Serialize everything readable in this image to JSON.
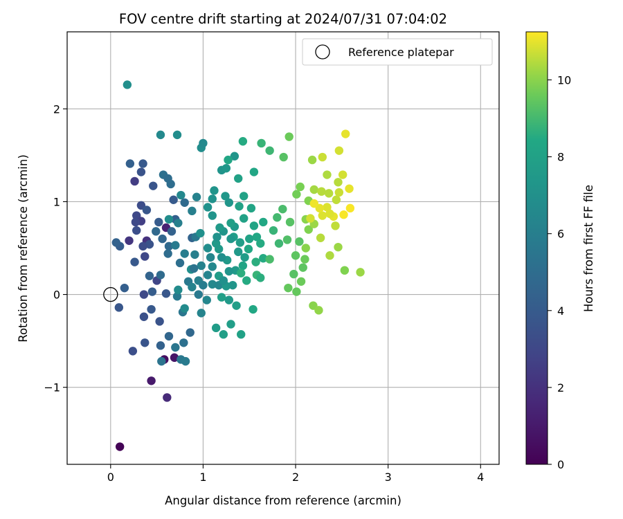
{
  "chart_data": {
    "type": "scatter",
    "title": "FOV centre drift starting at 2024/07/31 07:04:02",
    "xlabel": "Angular distance from reference (arcmin)",
    "ylabel": "Rotation from reference (arcmin)",
    "xlim": [
      -0.47,
      4.2
    ],
    "ylim": [
      -1.83,
      2.83
    ],
    "xticks": [
      0,
      1,
      2,
      3,
      4
    ],
    "xtick_labels": [
      "0",
      "1",
      "2",
      "3",
      "4"
    ],
    "yticks": [
      -1,
      0,
      1,
      2
    ],
    "ytick_labels": [
      "−1",
      "0",
      "1",
      "2"
    ],
    "grid": true,
    "legend": {
      "position": "top-right",
      "entries": [
        {
          "label": "Reference platepar",
          "marker": "open-circle"
        }
      ]
    },
    "reference_point": {
      "x": 0,
      "y": 0
    },
    "colorbar": {
      "label": "Hours from first FF file",
      "min": 0,
      "max": 11.25,
      "ticks": [
        0,
        2,
        4,
        6,
        8,
        10
      ],
      "tick_labels": [
        "0",
        "2",
        "4",
        "6",
        "8",
        "10"
      ],
      "colormap": "viridis"
    },
    "columns": [
      "x_arcmin",
      "y_arcmin",
      "hours"
    ],
    "points": [
      [
        0.1,
        -1.64,
        0.1
      ],
      [
        0.44,
        -0.93,
        1.0
      ],
      [
        0.61,
        -1.11,
        1.7
      ],
      [
        0.58,
        -0.7,
        0.5
      ],
      [
        0.69,
        -0.68,
        0.8
      ],
      [
        0.6,
        0.72,
        1.3
      ],
      [
        0.39,
        0.58,
        2.0
      ],
      [
        0.26,
        1.22,
        2.5
      ],
      [
        0.2,
        0.58,
        2.2
      ],
      [
        0.28,
        0.85,
        3.0
      ],
      [
        0.33,
        0.79,
        2.6
      ],
      [
        0.27,
        0.78,
        3.1
      ],
      [
        0.5,
        0.15,
        2.9
      ],
      [
        0.37,
        0.41,
        3.0
      ],
      [
        0.33,
        0.96,
        3.3
      ],
      [
        0.36,
        0.0,
        3.1
      ],
      [
        0.24,
        -0.61,
        3.4
      ],
      [
        0.53,
        -0.29,
        3.6
      ],
      [
        0.37,
        -0.52,
        3.7
      ],
      [
        0.36,
        -0.24,
        3.5
      ],
      [
        0.33,
        1.32,
        3.6
      ],
      [
        0.35,
        1.41,
        3.9
      ],
      [
        0.46,
        1.17,
        3.7
      ],
      [
        0.39,
        0.91,
        3.8
      ],
      [
        0.52,
        0.78,
        4.0
      ],
      [
        0.42,
        0.54,
        3.6
      ],
      [
        0.35,
        0.52,
        3.3
      ],
      [
        0.28,
        0.69,
        3.4
      ],
      [
        0.26,
        0.35,
        3.9
      ],
      [
        0.45,
        0.03,
        4.1
      ],
      [
        0.6,
        0.01,
        3.8
      ],
      [
        0.44,
        -0.16,
        3.9
      ],
      [
        0.09,
        -0.14,
        3.8
      ],
      [
        0.1,
        0.52,
        4.1
      ],
      [
        0.06,
        0.56,
        4.4
      ],
      [
        0.15,
        0.07,
        4.2
      ],
      [
        0.21,
        1.41,
        4.3
      ],
      [
        0.54,
        -0.55,
        4.4
      ],
      [
        0.63,
        -0.45,
        4.6
      ],
      [
        0.68,
        1.02,
        4.0
      ],
      [
        0.7,
        0.81,
        4.3
      ],
      [
        0.88,
        0.61,
        4.5
      ],
      [
        0.66,
        0.68,
        4.4
      ],
      [
        0.42,
        0.2,
        4.5
      ],
      [
        0.56,
        0.6,
        4.6
      ],
      [
        0.49,
        0.68,
        4.7
      ],
      [
        0.63,
        0.52,
        4.8
      ],
      [
        0.62,
        0.44,
        5.0
      ],
      [
        0.54,
        0.21,
        4.9
      ],
      [
        0.8,
        0.99,
        4.9
      ],
      [
        0.57,
        1.29,
        5.2
      ],
      [
        0.62,
        1.25,
        5.0
      ],
      [
        0.65,
        1.19,
        5.0
      ],
      [
        0.75,
        0.34,
        5.1
      ],
      [
        0.86,
        -0.41,
        4.7
      ],
      [
        0.79,
        -0.52,
        5.2
      ],
      [
        0.55,
        -0.72,
        5.4
      ],
      [
        0.7,
        -0.57,
        5.5
      ],
      [
        0.76,
        -0.7,
        5.6
      ],
      [
        0.81,
        -0.72,
        5.8
      ],
      [
        0.78,
        -0.19,
        5.5
      ],
      [
        0.72,
        -0.02,
        5.7
      ],
      [
        0.84,
        0.14,
        5.7
      ],
      [
        0.8,
        0.44,
        5.9
      ],
      [
        0.92,
        0.62,
        5.6
      ],
      [
        0.91,
        0.43,
        6.0
      ],
      [
        0.98,
        0.31,
        6.2
      ],
      [
        0.7,
        0.53,
        5.8
      ],
      [
        0.73,
        0.77,
        6.0
      ],
      [
        0.88,
        0.9,
        6.0
      ],
      [
        0.93,
        1.05,
        6.2
      ],
      [
        0.76,
        1.07,
        6.5
      ],
      [
        0.88,
        0.08,
        6.2
      ],
      [
        0.95,
        0.15,
        6.1
      ],
      [
        1.05,
        0.21,
        6.3
      ],
      [
        0.98,
        -0.2,
        6.3
      ],
      [
        1.04,
        -0.06,
        6.4
      ],
      [
        1.1,
        0.11,
        6.5
      ],
      [
        1.17,
        0.1,
        6.4
      ],
      [
        0.98,
        1.58,
        6.8
      ],
      [
        1.0,
        1.63,
        6.6
      ],
      [
        0.54,
        1.72,
        6.6
      ],
      [
        0.72,
        1.72,
        6.8
      ],
      [
        0.18,
        2.26,
        6.9
      ],
      [
        0.63,
        0.81,
        6.8
      ],
      [
        0.73,
        0.05,
        6.7
      ],
      [
        0.8,
        -0.15,
        6.7
      ],
      [
        0.87,
        0.27,
        6.9
      ],
      [
        0.97,
        0.66,
        7.0
      ],
      [
        1.05,
        0.94,
        7.1
      ],
      [
        1.1,
        1.03,
        7.1
      ],
      [
        1.12,
        1.12,
        7.2
      ],
      [
        1.2,
        1.34,
        7.2
      ],
      [
        1.25,
        1.36,
        7.4
      ],
      [
        1.34,
        1.49,
        7.3
      ],
      [
        1.24,
        1.06,
        7.4
      ],
      [
        1.28,
        0.99,
        7.3
      ],
      [
        1.34,
        0.73,
        7.5
      ],
      [
        1.22,
        0.68,
        7.3
      ],
      [
        1.17,
        0.49,
        7.6
      ],
      [
        1.14,
        0.55,
        7.5
      ],
      [
        1.26,
        0.37,
        7.5
      ],
      [
        1.17,
        0.2,
        7.7
      ],
      [
        1.25,
        0.09,
        7.4
      ],
      [
        1.14,
        -0.36,
        7.7
      ],
      [
        1.22,
        -0.43,
        7.9
      ],
      [
        1.3,
        -0.32,
        7.8
      ],
      [
        1.41,
        -0.43,
        8.0
      ],
      [
        1.36,
        -0.12,
        7.8
      ],
      [
        1.28,
        -0.06,
        7.5
      ],
      [
        1.2,
        -0.03,
        7.9
      ],
      [
        1.35,
        0.26,
        7.6
      ],
      [
        1.4,
        0.56,
        7.8
      ],
      [
        1.33,
        0.62,
        7.8
      ],
      [
        1.3,
        0.77,
        7.9
      ],
      [
        1.39,
        0.95,
        8.0
      ],
      [
        1.44,
        1.06,
        8.1
      ],
      [
        1.38,
        1.25,
        8.0
      ],
      [
        1.27,
        1.45,
        8.3
      ],
      [
        1.43,
        1.65,
        8.5
      ],
      [
        1.55,
        1.32,
        8.3
      ],
      [
        1.43,
        0.31,
        8.2
      ],
      [
        1.49,
        0.49,
        8.4
      ],
      [
        1.55,
        0.74,
        8.2
      ],
      [
        1.65,
        0.78,
        8.4
      ],
      [
        1.62,
        0.55,
        8.5
      ],
      [
        1.65,
        0.39,
        8.5
      ],
      [
        1.57,
        0.35,
        8.6
      ],
      [
        1.41,
        0.23,
        8.6
      ],
      [
        1.54,
        -0.16,
        8.4
      ],
      [
        1.47,
        0.15,
        8.5
      ],
      [
        1.58,
        0.21,
        8.8
      ],
      [
        1.63,
        1.63,
        8.8
      ],
      [
        1.72,
        1.55,
        8.9
      ],
      [
        1.82,
        0.55,
        8.9
      ],
      [
        1.76,
        0.69,
        8.8
      ],
      [
        1.8,
        0.83,
        9.0
      ],
      [
        1.72,
        0.38,
        9.1
      ],
      [
        1.91,
        0.59,
        9.2
      ],
      [
        1.86,
        0.92,
        9.1
      ],
      [
        1.94,
        0.78,
        9.3
      ],
      [
        1.98,
        0.22,
        9.3
      ],
      [
        2.0,
        0.42,
        9.4
      ],
      [
        2.04,
        0.57,
        9.3
      ],
      [
        1.92,
        0.07,
        9.5
      ],
      [
        2.01,
        0.03,
        9.5
      ],
      [
        2.06,
        0.14,
        9.6
      ],
      [
        2.08,
        0.29,
        9.4
      ],
      [
        2.1,
        0.38,
        9.6
      ],
      [
        1.87,
        1.48,
        9.3
      ],
      [
        1.93,
        1.7,
        9.6
      ],
      [
        2.01,
        1.08,
        9.7
      ],
      [
        2.05,
        1.16,
        9.8
      ],
      [
        2.14,
        1.01,
        9.9
      ],
      [
        2.11,
        0.81,
        10.0
      ],
      [
        2.14,
        0.7,
        9.9
      ],
      [
        2.11,
        0.5,
        10.0
      ],
      [
        2.2,
        0.76,
        10.2
      ],
      [
        2.18,
        1.45,
        10.2
      ],
      [
        2.2,
        1.13,
        10.3
      ],
      [
        2.28,
        1.11,
        10.5
      ],
      [
        2.36,
        1.09,
        10.5
      ],
      [
        2.34,
        1.29,
        10.4
      ],
      [
        2.44,
        1.02,
        10.6
      ],
      [
        2.47,
        1.1,
        10.7
      ],
      [
        2.46,
        1.21,
        10.5
      ],
      [
        2.51,
        1.29,
        10.8
      ],
      [
        2.54,
        1.73,
        11.0
      ],
      [
        2.47,
        1.55,
        10.8
      ],
      [
        2.58,
        1.14,
        11.0
      ],
      [
        2.59,
        0.93,
        11.2
      ],
      [
        2.52,
        0.86,
        11.2
      ],
      [
        2.41,
        0.84,
        11.0
      ],
      [
        2.37,
        0.87,
        10.9
      ],
      [
        2.34,
        0.94,
        10.9
      ],
      [
        2.43,
        0.74,
        10.6
      ],
      [
        2.37,
        0.42,
        10.4
      ],
      [
        2.46,
        0.51,
        10.2
      ],
      [
        2.53,
        0.26,
        9.9
      ],
      [
        2.7,
        0.24,
        10.2
      ],
      [
        2.29,
        0.85,
        10.9
      ],
      [
        2.26,
        0.93,
        11.0
      ],
      [
        2.2,
        0.98,
        11.1
      ],
      [
        2.16,
        0.82,
        10.8
      ],
      [
        2.27,
        0.61,
        10.5
      ],
      [
        2.19,
        -0.12,
        10.0
      ],
      [
        2.25,
        -0.17,
        10.1
      ],
      [
        2.29,
        1.48,
        10.7
      ],
      [
        1.3,
        0.6,
        7.4
      ],
      [
        1.2,
        0.4,
        6.9
      ],
      [
        1.1,
        0.3,
        6.5
      ],
      [
        1.05,
        0.5,
        6.8
      ],
      [
        1.15,
        0.62,
        7.1
      ],
      [
        1.45,
        0.4,
        7.7
      ],
      [
        1.5,
        0.6,
        8.1
      ],
      [
        1.38,
        0.46,
        7.5
      ],
      [
        1.28,
        0.25,
        7.2
      ],
      [
        1.22,
        0.15,
        7.0
      ],
      [
        1.08,
        0.4,
        6.4
      ],
      [
        1.32,
        0.1,
        7.3
      ],
      [
        1.44,
        0.82,
        8.0
      ],
      [
        1.52,
        0.93,
        8.2
      ],
      [
        1.58,
        0.62,
        8.4
      ],
      [
        1.62,
        0.18,
        8.6
      ],
      [
        1.18,
        0.72,
        7.6
      ],
      [
        1.0,
        0.1,
        5.9
      ],
      [
        0.95,
        0.0,
        5.7
      ],
      [
        0.9,
        0.28,
        5.4
      ],
      [
        1.1,
        0.85,
        7.2
      ]
    ]
  }
}
